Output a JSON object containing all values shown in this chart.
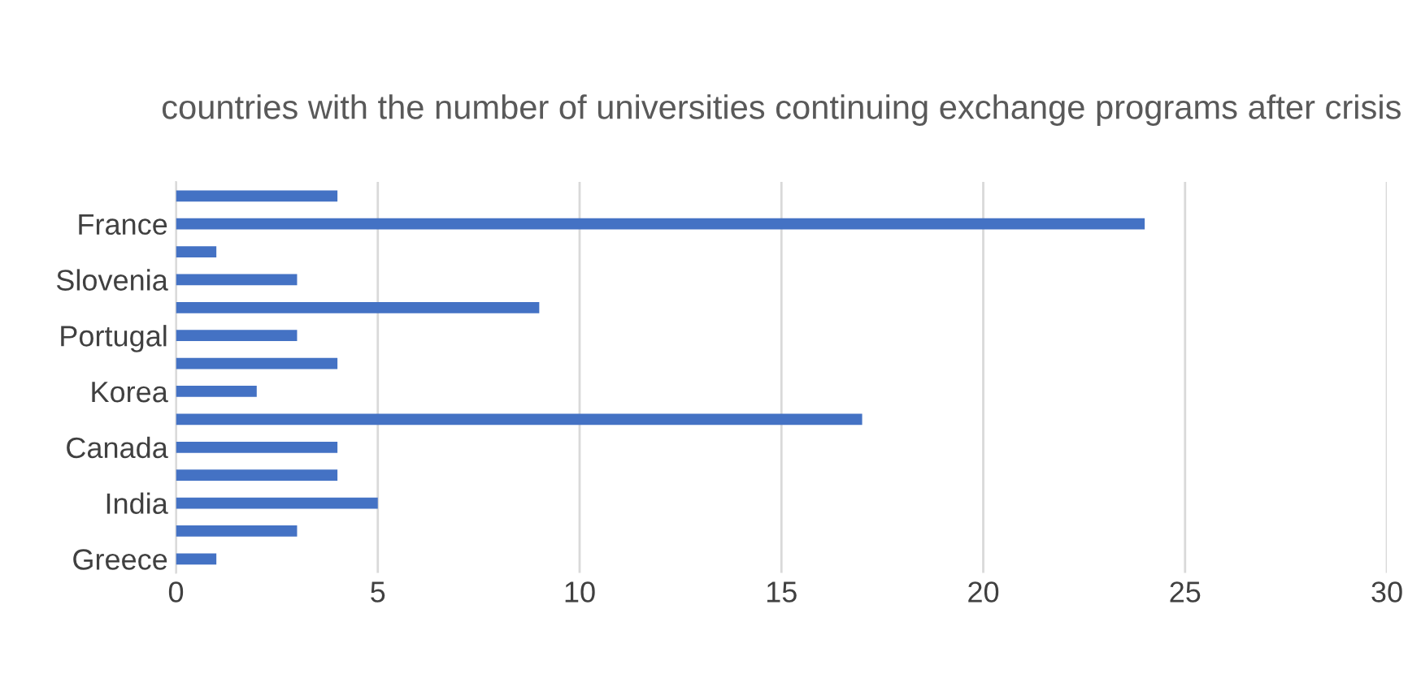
{
  "chart_data": {
    "type": "bar",
    "orientation": "horizontal",
    "title": "countries with the number of universities continuing exchange programs after crisis",
    "categories": [
      null,
      "France",
      null,
      "Slovenia",
      null,
      "Portugal",
      null,
      "Korea",
      null,
      "Canada",
      null,
      "India",
      null,
      "Greece"
    ],
    "values": [
      4,
      24,
      1,
      3,
      9,
      3,
      4,
      2,
      17,
      4,
      4,
      5,
      3,
      1
    ],
    "color": "#4472c4",
    "xlim": [
      0,
      30
    ],
    "xticks": [
      0,
      5,
      10,
      15,
      20,
      25,
      30
    ],
    "grid": "x"
  }
}
